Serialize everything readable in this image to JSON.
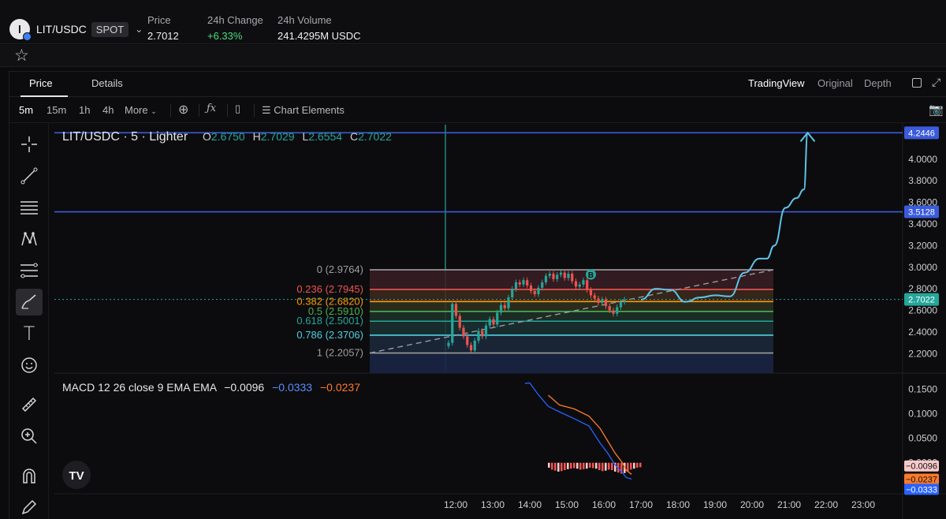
{
  "header": {
    "pair": "LIT/USDC",
    "market_type": "SPOT",
    "stats": [
      {
        "label": "Price",
        "value": "2.7012"
      },
      {
        "label": "24h Change",
        "value": "+6.33%"
      },
      {
        "label": "24h Volume",
        "value": "241.4295M USDC"
      }
    ]
  },
  "tabs": [
    "Price",
    "Details"
  ],
  "views": [
    "TradingView",
    "Original",
    "Depth"
  ],
  "toolbar": {
    "intervals": [
      "5m",
      "15m",
      "1h",
      "4h"
    ],
    "more_label": "More",
    "chart_elements_label": "Chart Elements"
  },
  "icons": {
    "star": "star-icon",
    "crosshair": "crosshair-icon",
    "trend_line": "trend-line-icon",
    "fib": "fib-retracement-icon",
    "pattern": "pattern-icon",
    "brush": "brush-icon",
    "text": "text-icon",
    "emoji": "emoji-icon",
    "ruler": "ruler-icon",
    "zoom": "zoom-in-icon",
    "magnet": "magnet-icon",
    "camera": "camera-icon",
    "fx": "fx-icon",
    "add": "add-indicator-icon"
  },
  "legend": {
    "title": "LIT/USDC · 5 · Lighter",
    "ohlc": [
      {
        "k": "O",
        "v": "2.6750"
      },
      {
        "k": "H",
        "v": "2.7029"
      },
      {
        "k": "L",
        "v": "2.6554"
      },
      {
        "k": "C",
        "v": "2.7022"
      }
    ]
  },
  "macd_legend": {
    "label": "MACD 12 26 close 9 EMA EMA",
    "values": [
      "−0.0096",
      "−0.0333",
      "−0.0237"
    ]
  },
  "colors": {
    "up": "#26a69a",
    "down": "#ef5350",
    "hline": "#3b5bdb",
    "projection": "#5ec4e8",
    "macd_line": "#2962ff",
    "signal_line": "#ff7a2a"
  },
  "chart_data": {
    "type": "candlestick",
    "y_axis_ticks": [
      "4.0000",
      "3.8000",
      "3.6000",
      "3.4000",
      "3.2000",
      "3.0000",
      "2.8000",
      "2.6000",
      "2.4000",
      "2.2000"
    ],
    "x_axis_ticks": [
      "12:00",
      "13:00",
      "14:00",
      "15:00",
      "16:00",
      "17:00",
      "18:00",
      "19:00",
      "20:00",
      "21:00",
      "22:00",
      "23:00"
    ],
    "ylim": [
      2.02,
      4.32
    ],
    "price_labels": [
      {
        "value": 4.2446,
        "text": "4.2446",
        "color": "#3b5bdb"
      },
      {
        "value": 3.5128,
        "text": "3.5128",
        "color": "#3b5bdb"
      },
      {
        "value": 2.7022,
        "text": "2.7022",
        "color": "#26a69a"
      }
    ],
    "fib_levels": [
      {
        "label": "0 (2.9764)",
        "value": 2.9764,
        "color": "#9e9e9e"
      },
      {
        "label": "0.236 (2.7945)",
        "value": 2.7945,
        "color": "#ef5350"
      },
      {
        "label": "0.382 (2.6820)",
        "value": 2.682,
        "color": "#ff9800"
      },
      {
        "label": "0.5 (2.5910)",
        "value": 2.591,
        "color": "#4caf50"
      },
      {
        "label": "0.618 (2.5001)",
        "value": 2.5001,
        "color": "#26a69a"
      },
      {
        "label": "0.786 (2.3706)",
        "value": 2.3706,
        "color": "#4dd0e1"
      },
      {
        "label": "1 (2.2057)",
        "value": 2.2057,
        "color": "#9e9e9e"
      }
    ],
    "marker": {
      "label": "B",
      "time": 15.65,
      "value": 2.9764
    },
    "macd_ticks": [
      "0.1500",
      "0.1000",
      "0.0500",
      "0.0000"
    ],
    "macd_ylim": [
      -0.06,
      0.175
    ],
    "macd_price_labels": [
      {
        "value": -0.0096,
        "text": "−0.0096",
        "bg": "#f8c9c9",
        "fg": "#111"
      },
      {
        "value": -0.0237,
        "text": "−0.0237",
        "bg": "#ff7a2a",
        "fg": "#111"
      },
      {
        "value": -0.0333,
        "text": "−0.0333",
        "bg": "#2962ff",
        "fg": "#fff"
      }
    ]
  }
}
